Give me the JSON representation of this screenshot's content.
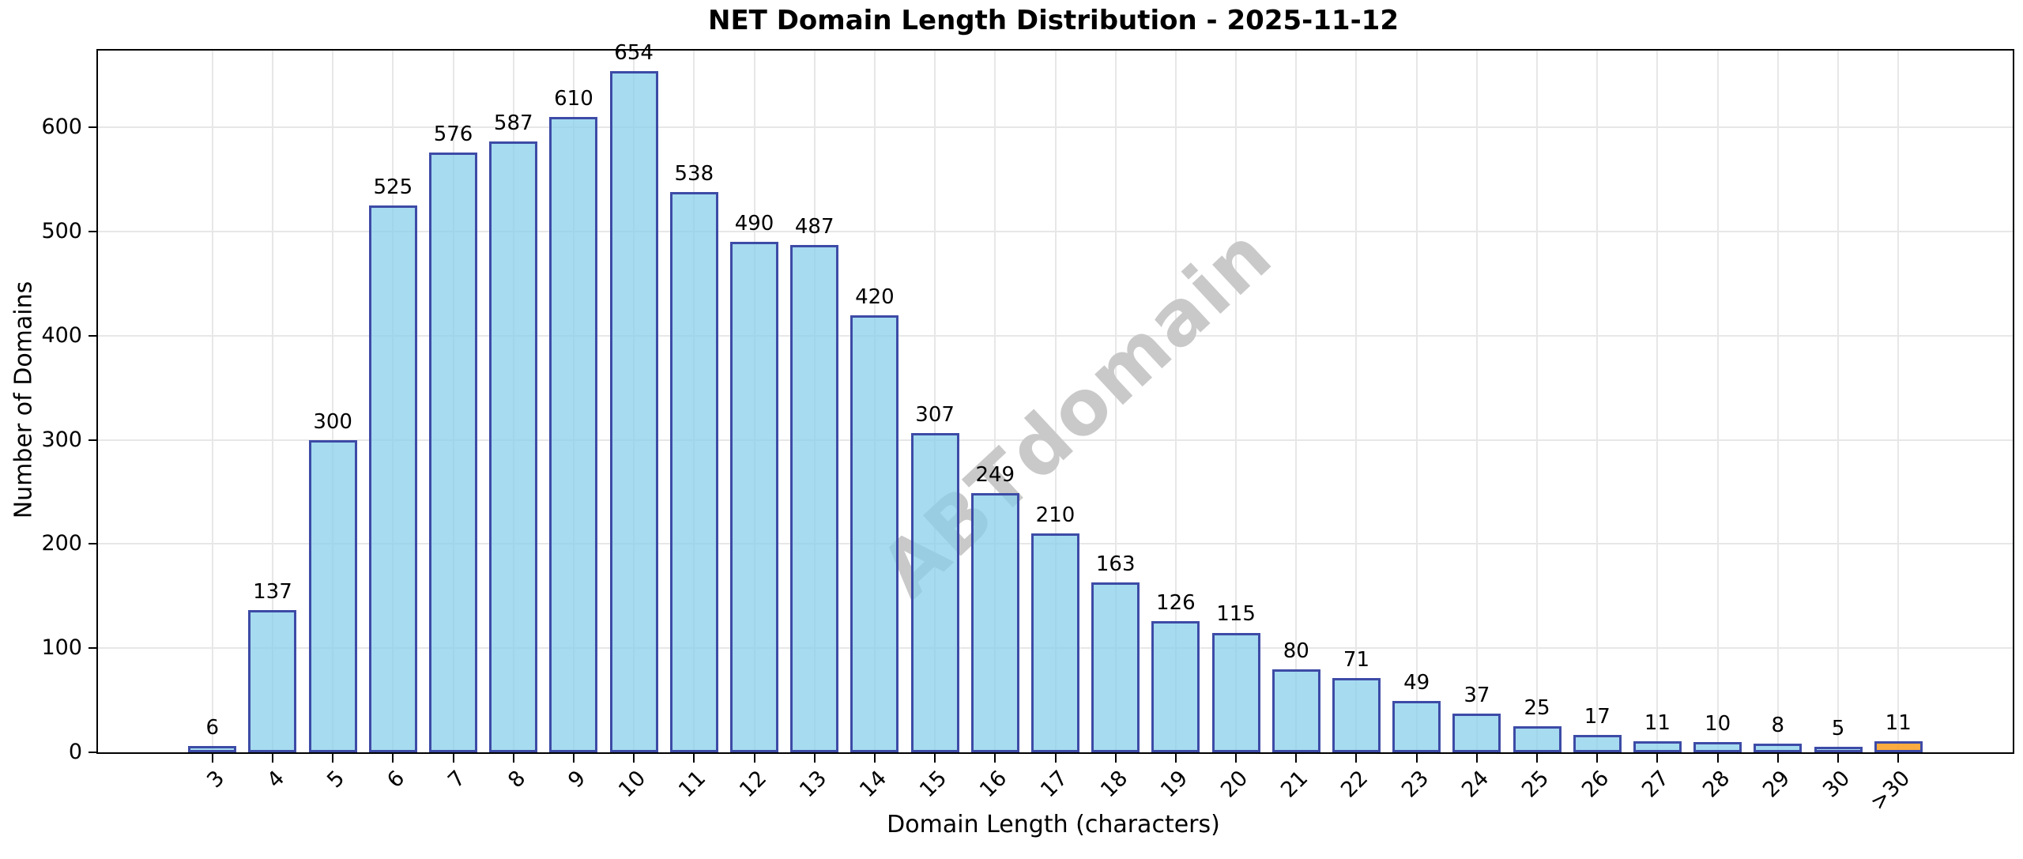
{
  "title": "NET Domain Length Distribution - 2025-11-12",
  "watermark_text": "ABTdomain",
  "chart_data": {
    "type": "bar",
    "title": "NET Domain Length Distribution - 2025-11-12",
    "xlabel": "Domain Length (characters)",
    "ylabel": "Number of Domains",
    "categories": [
      "3",
      "4",
      "5",
      "6",
      "7",
      "8",
      "9",
      "10",
      "11",
      "12",
      "13",
      "14",
      "15",
      "16",
      "17",
      "18",
      "19",
      "20",
      "21",
      "22",
      "23",
      "24",
      "25",
      "26",
      "27",
      "28",
      "29",
      "30",
      ">30"
    ],
    "values": [
      6,
      137,
      300,
      525,
      576,
      587,
      610,
      654,
      538,
      490,
      487,
      420,
      307,
      249,
      210,
      163,
      126,
      115,
      80,
      71,
      49,
      37,
      25,
      17,
      11,
      10,
      8,
      5,
      11
    ],
    "ylim": [
      0,
      674
    ],
    "yticks": [
      0,
      100,
      200,
      300,
      400,
      500,
      600
    ],
    "grid": true,
    "legend": "none",
    "bar_fill_color": "#87ceebbd",
    "last_bar_fill_color": "#fa9e1ed9",
    "bar_edge_color": "#3d4ba6",
    "grid_color": "#e7e7e7",
    "watermark": "ABTdomain",
    "watermark_color": "#c9c9c9"
  }
}
